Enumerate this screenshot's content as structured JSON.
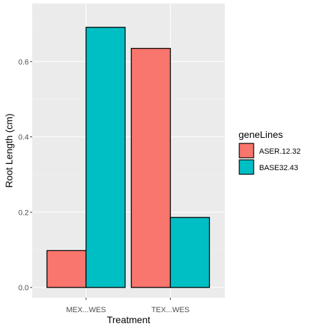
{
  "chart_data": {
    "type": "bar",
    "title": "",
    "xlabel": "Treatment",
    "ylabel": "Root Length (cm)",
    "categories": [
      "MEX...WES",
      "TEX...WES"
    ],
    "series": [
      {
        "name": "ASER.12.32",
        "color": "#F8766D",
        "values": [
          0.098,
          0.635
        ]
      },
      {
        "name": "BASE32.43",
        "color": "#00BFC4",
        "values": [
          0.691,
          0.186
        ]
      }
    ],
    "ylim": [
      0,
      0.72
    ],
    "yticks": [
      0.0,
      0.2,
      0.4,
      0.6
    ],
    "ytick_labels": [
      "0.0",
      "0.2",
      "0.4",
      "0.6"
    ],
    "grid": true,
    "panel_background": "#EBEBEB",
    "legend": {
      "title": "geneLines",
      "position": "right"
    }
  }
}
